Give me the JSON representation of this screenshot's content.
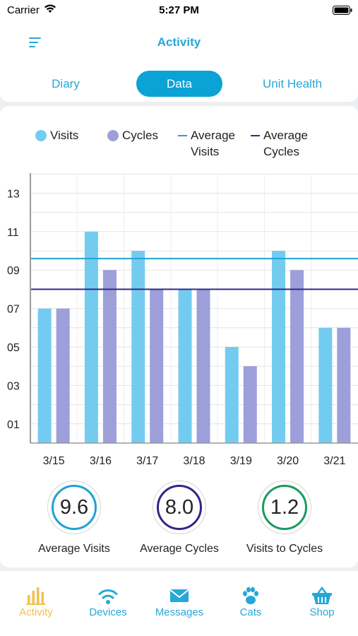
{
  "status": {
    "carrier": "Carrier",
    "time": "5:27 PM"
  },
  "header": {
    "title": "Activity"
  },
  "tabs": [
    {
      "label": "Diary",
      "active": false
    },
    {
      "label": "Data",
      "active": true
    },
    {
      "label": "Unit Health",
      "active": false
    }
  ],
  "legend": {
    "visits": "Visits",
    "cycles": "Cycles",
    "avg_visits": [
      "Average",
      "Visits"
    ],
    "avg_cycles": [
      "Average",
      "Cycles"
    ]
  },
  "colors": {
    "accent": "#0ba3d6",
    "visits": "#73ccf0",
    "cycles": "#9c9fd9",
    "avg_visits_line": "#1ea3d3",
    "avg_cycles_line": "#332a8c",
    "stat_visits": "#1ea3d3",
    "stat_cycles": "#2e2888",
    "stat_ratio": "#1a9a5e",
    "active_tab": "#f1c24b"
  },
  "chart_data": {
    "type": "bar",
    "categories": [
      "3/15",
      "3/16",
      "3/17",
      "3/18",
      "3/19",
      "3/20",
      "3/21"
    ],
    "series": [
      {
        "name": "Visits",
        "values": [
          7,
          11,
          10,
          8,
          5,
          10,
          6
        ]
      },
      {
        "name": "Cycles",
        "values": [
          7,
          9,
          8,
          8,
          4,
          9,
          6
        ]
      }
    ],
    "reference_lines": [
      {
        "name": "Average Visits",
        "value": 9.6
      },
      {
        "name": "Average Cycles",
        "value": 8.0
      }
    ],
    "y_ticks": [
      "01",
      "03",
      "05",
      "07",
      "09",
      "11",
      "13"
    ],
    "ylim": [
      0,
      14
    ],
    "grid": true,
    "legend_position": "top"
  },
  "stats": [
    {
      "value": "9.6",
      "label": "Average Visits"
    },
    {
      "value": "8.0",
      "label": "Average Cycles"
    },
    {
      "value": "1.2",
      "label": "Visits to Cycles"
    }
  ],
  "tab_bar": [
    {
      "label": "Activity",
      "icon": "bar-chart-icon",
      "active": true
    },
    {
      "label": "Devices",
      "icon": "wifi-icon",
      "active": false
    },
    {
      "label": "Messages",
      "icon": "envelope-icon",
      "active": false
    },
    {
      "label": "Cats",
      "icon": "paw-icon",
      "active": false
    },
    {
      "label": "Shop",
      "icon": "basket-icon",
      "active": false
    }
  ]
}
